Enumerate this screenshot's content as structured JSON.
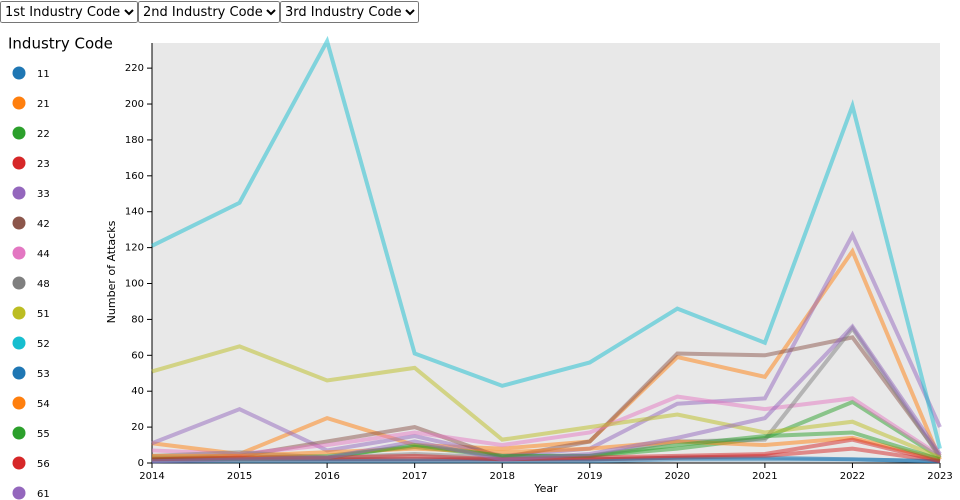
{
  "controls": [
    "1st Industry Code",
    "2nd Industry Code",
    "3rd Industry Code"
  ],
  "chart_data": {
    "type": "line",
    "legend_title": "Industry Code",
    "x_label": "Year",
    "y_label": "Number of Attacks",
    "x": [
      2014,
      2015,
      2016,
      2017,
      2018,
      2019,
      2020,
      2021,
      2022,
      2023
    ],
    "xlim": [
      2014,
      2023
    ],
    "xticks": [
      2014,
      2015,
      2016,
      2017,
      2018,
      2019,
      2020,
      2021,
      2022,
      2023
    ],
    "ylim": [
      0,
      234
    ],
    "yticks": [
      0,
      20,
      40,
      60,
      80,
      100,
      120,
      140,
      160,
      180,
      200,
      220
    ],
    "series": [
      {
        "name": "11",
        "color": "#1f77b4",
        "values": [
          2,
          2,
          2,
          2,
          2,
          2,
          3,
          3,
          2,
          1
        ]
      },
      {
        "name": "21",
        "color": "#ff7f0e",
        "values": [
          11,
          5,
          25,
          10,
          8,
          12,
          59,
          48,
          118,
          2
        ]
      },
      {
        "name": "22",
        "color": "#2ca02c",
        "values": [
          3,
          3,
          4,
          9,
          4,
          4,
          8,
          14,
          34,
          3
        ]
      },
      {
        "name": "23",
        "color": "#d62728",
        "values": [
          2,
          2,
          2,
          2,
          2,
          2,
          3,
          4,
          8,
          1
        ]
      },
      {
        "name": "33",
        "color": "#9467bd",
        "values": [
          11,
          30,
          7,
          15,
          4,
          8,
          33,
          36,
          127,
          20
        ]
      },
      {
        "name": "42",
        "color": "#8c564b",
        "values": [
          2,
          4,
          12,
          20,
          3,
          12,
          61,
          60,
          70,
          4
        ]
      },
      {
        "name": "44",
        "color": "#e377c2",
        "values": [
          7,
          5,
          10,
          17,
          10,
          17,
          37,
          30,
          36,
          4
        ]
      },
      {
        "name": "48",
        "color": "#7f7f7f",
        "values": [
          4,
          6,
          3,
          5,
          3,
          4,
          12,
          13,
          75,
          3
        ]
      },
      {
        "name": "51",
        "color": "#bcbd22",
        "values": [
          51,
          65,
          46,
          53,
          13,
          20,
          27,
          17,
          23,
          3
        ]
      },
      {
        "name": "52",
        "color": "#17becf",
        "values": [
          121,
          145,
          235,
          61,
          43,
          56,
          86,
          67,
          199,
          8
        ]
      },
      {
        "name": "53",
        "color": "#1f77b4",
        "values": [
          1,
          1,
          1,
          1,
          1,
          1,
          2,
          2,
          2,
          1
        ]
      },
      {
        "name": "54",
        "color": "#ff7f0e",
        "values": [
          4,
          4,
          6,
          8,
          6,
          8,
          12,
          10,
          14,
          2
        ]
      },
      {
        "name": "55",
        "color": "#2ca02c",
        "values": [
          2,
          2,
          3,
          10,
          4,
          4,
          10,
          15,
          17,
          2
        ]
      },
      {
        "name": "56",
        "color": "#d62728",
        "values": [
          2,
          3,
          3,
          4,
          2,
          3,
          4,
          5,
          13,
          1
        ]
      },
      {
        "name": "61",
        "color": "#9467bd",
        "values": [
          1,
          2,
          3,
          12,
          2,
          5,
          14,
          25,
          76,
          5
        ]
      }
    ]
  }
}
